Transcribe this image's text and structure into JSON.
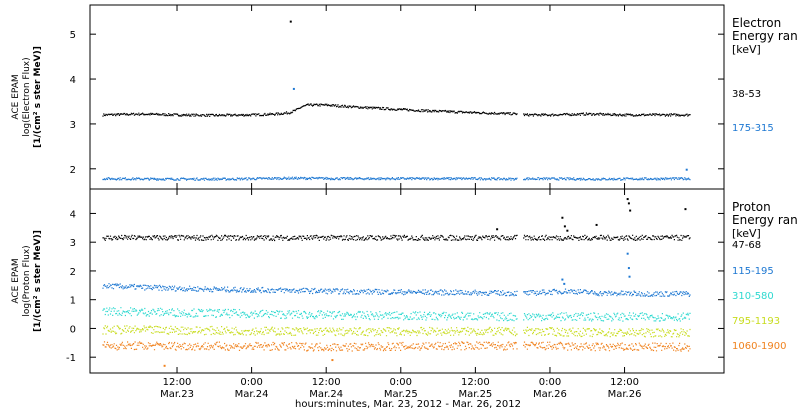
{
  "chart_data": [
    {
      "type": "scatter",
      "ylabel_lines": [
        "ACE EPAM",
        "log(Electron Flux)",
        "[1/(cm² s ster MeV)]"
      ],
      "ylim": [
        1.55,
        5.65
      ],
      "yticks": [
        2,
        3,
        4,
        5
      ],
      "legend_title": [
        "Electron",
        "Energy ran",
        "[keV]"
      ],
      "series": [
        {
          "name": "38-53",
          "color": "#000000",
          "points": [
            [
              0,
              3.2
            ],
            [
              6,
              3.22
            ],
            [
              12,
              3.2
            ],
            [
              18,
              3.19
            ],
            [
              24,
              3.2
            ],
            [
              28,
              3.22
            ],
            [
              30,
              3.25
            ],
            [
              31,
              3.3
            ],
            [
              32,
              3.38
            ],
            [
              33,
              3.42
            ],
            [
              36,
              3.42
            ],
            [
              40,
              3.38
            ],
            [
              48,
              3.32
            ],
            [
              54,
              3.28
            ],
            [
              60,
              3.25
            ],
            [
              67,
              3.22
            ],
            [
              68,
              3.2
            ],
            [
              72,
              3.2
            ],
            [
              78,
              3.22
            ],
            [
              84,
              3.2
            ],
            [
              90,
              3.2
            ],
            [
              94.5,
              3.2
            ]
          ],
          "outliers": [
            [
              30.3,
              5.28
            ]
          ]
        },
        {
          "name": "175-315",
          "color": "#1e78d2",
          "points": [
            [
              0,
              1.78
            ],
            [
              10,
              1.77
            ],
            [
              20,
              1.77
            ],
            [
              30,
              1.79
            ],
            [
              40,
              1.78
            ],
            [
              50,
              1.78
            ],
            [
              60,
              1.78
            ],
            [
              67,
              1.77
            ],
            [
              68,
              1.78
            ],
            [
              80,
              1.77
            ],
            [
              94.5,
              1.78
            ]
          ],
          "outliers": [
            [
              30.8,
              3.78
            ],
            [
              94,
              1.98
            ]
          ]
        }
      ]
    },
    {
      "type": "scatter",
      "ylabel_lines": [
        "ACE EPAM",
        "log(Proton Flux)",
        "[1/(cm² s ster MeV)]"
      ],
      "ylim": [
        -1.55,
        4.85
      ],
      "yticks": [
        -1,
        0,
        1,
        2,
        3,
        4
      ],
      "legend_title": [
        "Proton",
        "Energy ran",
        "[keV]"
      ],
      "series": [
        {
          "name": "47-68",
          "color": "#000000",
          "points": [
            [
              0,
              3.15
            ],
            [
              20,
              3.15
            ],
            [
              40,
              3.15
            ],
            [
              60,
              3.15
            ],
            [
              67,
              3.15
            ],
            [
              68,
              3.15
            ],
            [
              80,
              3.15
            ],
            [
              94.5,
              3.15
            ]
          ],
          "outliers": [
            [
              63.5,
              3.45
            ],
            [
              74,
              3.85
            ],
            [
              74.4,
              3.55
            ],
            [
              74.8,
              3.4
            ],
            [
              79.5,
              3.6
            ],
            [
              84.5,
              4.5
            ],
            [
              84.7,
              4.35
            ],
            [
              84.9,
              4.1
            ],
            [
              93.8,
              4.15
            ]
          ]
        },
        {
          "name": "115-195",
          "color": "#1e78d2",
          "points": [
            [
              0,
              1.48
            ],
            [
              10,
              1.4
            ],
            [
              20,
              1.35
            ],
            [
              30,
              1.32
            ],
            [
              40,
              1.28
            ],
            [
              50,
              1.26
            ],
            [
              60,
              1.24
            ],
            [
              67,
              1.22
            ],
            [
              68,
              1.22
            ],
            [
              75,
              1.3
            ],
            [
              80,
              1.22
            ],
            [
              90,
              1.2
            ],
            [
              94.5,
              1.2
            ]
          ],
          "outliers": [
            [
              74,
              1.7
            ],
            [
              74.3,
              1.55
            ],
            [
              84.5,
              2.6
            ],
            [
              84.7,
              2.1
            ],
            [
              84.8,
              1.8
            ]
          ]
        },
        {
          "name": "310-580",
          "color": "#2fd9d0",
          "points": [
            [
              0,
              0.6
            ],
            [
              20,
              0.52
            ],
            [
              40,
              0.45
            ],
            [
              60,
              0.42
            ],
            [
              67,
              0.4
            ],
            [
              68,
              0.42
            ],
            [
              80,
              0.4
            ],
            [
              94.5,
              0.4
            ]
          ],
          "outliers": []
        },
        {
          "name": "795-1193",
          "color": "#c8dc1e",
          "points": [
            [
              0,
              -0.05
            ],
            [
              20,
              -0.08
            ],
            [
              40,
              -0.12
            ],
            [
              60,
              -0.1
            ],
            [
              67,
              -0.12
            ],
            [
              68,
              -0.1
            ],
            [
              80,
              -0.15
            ],
            [
              94.5,
              -0.15
            ]
          ],
          "outliers": []
        },
        {
          "name": "1060-1900",
          "color": "#f0821e",
          "points": [
            [
              0,
              -0.6
            ],
            [
              20,
              -0.62
            ],
            [
              40,
              -0.65
            ],
            [
              60,
              -0.6
            ],
            [
              67,
              -0.62
            ],
            [
              68,
              -0.6
            ],
            [
              80,
              -0.65
            ],
            [
              94.5,
              -0.65
            ]
          ],
          "outliers": [
            [
              10,
              -1.3
            ],
            [
              37,
              -1.1
            ]
          ]
        }
      ]
    }
  ],
  "x_axis": {
    "xlim": [
      -2,
      100
    ],
    "units": "hours since Mar.23 00:00",
    "gap": [
      66.6,
      67.6
    ],
    "ticks": [
      {
        "x": 12,
        "time": "12:00",
        "date": "Mar.23"
      },
      {
        "x": 24,
        "time": "0:00",
        "date": "Mar.24"
      },
      {
        "x": 36,
        "time": "12:00",
        "date": "Mar.24"
      },
      {
        "x": 48,
        "time": "0:00",
        "date": "Mar.25"
      },
      {
        "x": 60,
        "time": "12:00",
        "date": "Mar.25"
      },
      {
        "x": 72,
        "time": "0:00",
        "date": "Mar.26"
      },
      {
        "x": 84,
        "time": "12:00",
        "date": "Mar.26"
      }
    ],
    "label": "hours:minutes, Mar. 23, 2012 - Mar. 26, 2012"
  }
}
